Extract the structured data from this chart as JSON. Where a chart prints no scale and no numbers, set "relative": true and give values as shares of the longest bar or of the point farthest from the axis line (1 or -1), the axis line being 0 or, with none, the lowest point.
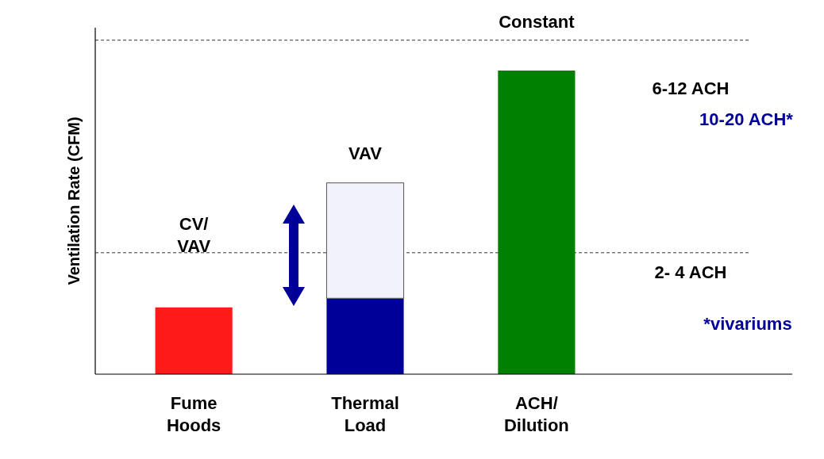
{
  "chart_data": {
    "type": "bar",
    "relative": true,
    "stacked": true,
    "ylabel": "Ventilation Rate (CFM)",
    "categories": [
      "Fume\nHoods",
      "Thermal\nLoad",
      "ACH/\nDilution"
    ],
    "series": [
      {
        "colors": [
          "#ff1a1a",
          "#000099",
          "#008000"
        ],
        "values": [
          0.22,
          0.25,
          1.0
        ]
      },
      {
        "color": "#f2f2fa",
        "values": [
          null,
          0.38,
          null
        ]
      }
    ],
    "ref_lines": [
      {
        "axis": "y",
        "value": 1.1,
        "label": "6-12 ACH",
        "color": "#000000",
        "line_style": "dashed"
      },
      {
        "axis": "y",
        "value": 0.4,
        "label": "2- 4 ACH",
        "color": "#000000",
        "line_style": "dashed"
      }
    ],
    "annotations": [
      "CV/\nVAV",
      "VAV",
      "Constant",
      "10-20 ACH*",
      "*vivariums"
    ]
  }
}
